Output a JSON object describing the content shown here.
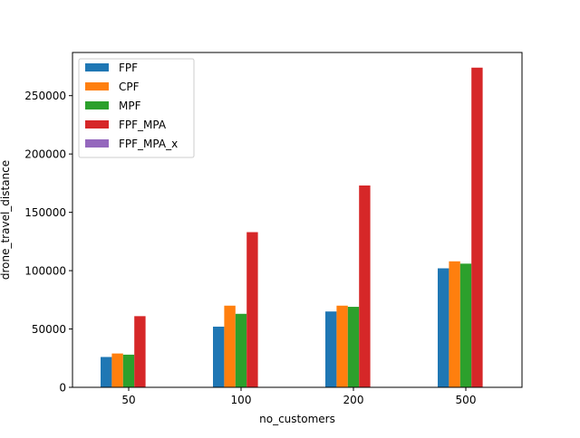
{
  "chart_data": {
    "type": "bar",
    "title": "",
    "xlabel": "no_customers",
    "ylabel": "drone_travel_distance",
    "categories": [
      "50",
      "100",
      "200",
      "500"
    ],
    "ylim": [
      0,
      287000
    ],
    "yticks": [
      0,
      50000,
      100000,
      150000,
      200000,
      250000
    ],
    "ytick_labels": [
      "0",
      "50000",
      "100000",
      "150000",
      "200000",
      "250000"
    ],
    "grid": false,
    "legend_position": "upper left",
    "series": [
      {
        "name": "FPF",
        "color": "#1f77b4",
        "values": [
          26000,
          52000,
          65000,
          102000
        ]
      },
      {
        "name": "CPF",
        "color": "#ff7f0e",
        "values": [
          29000,
          70000,
          70000,
          108000
        ]
      },
      {
        "name": "MPF",
        "color": "#2ca02c",
        "values": [
          28000,
          63000,
          69000,
          106000
        ]
      },
      {
        "name": "FPF_MPA",
        "color": "#d62728",
        "values": [
          61000,
          133000,
          173000,
          274000
        ]
      },
      {
        "name": "FPF_MPA_x",
        "color": "#9467bd",
        "values": [
          0,
          0,
          0,
          0
        ]
      }
    ]
  }
}
